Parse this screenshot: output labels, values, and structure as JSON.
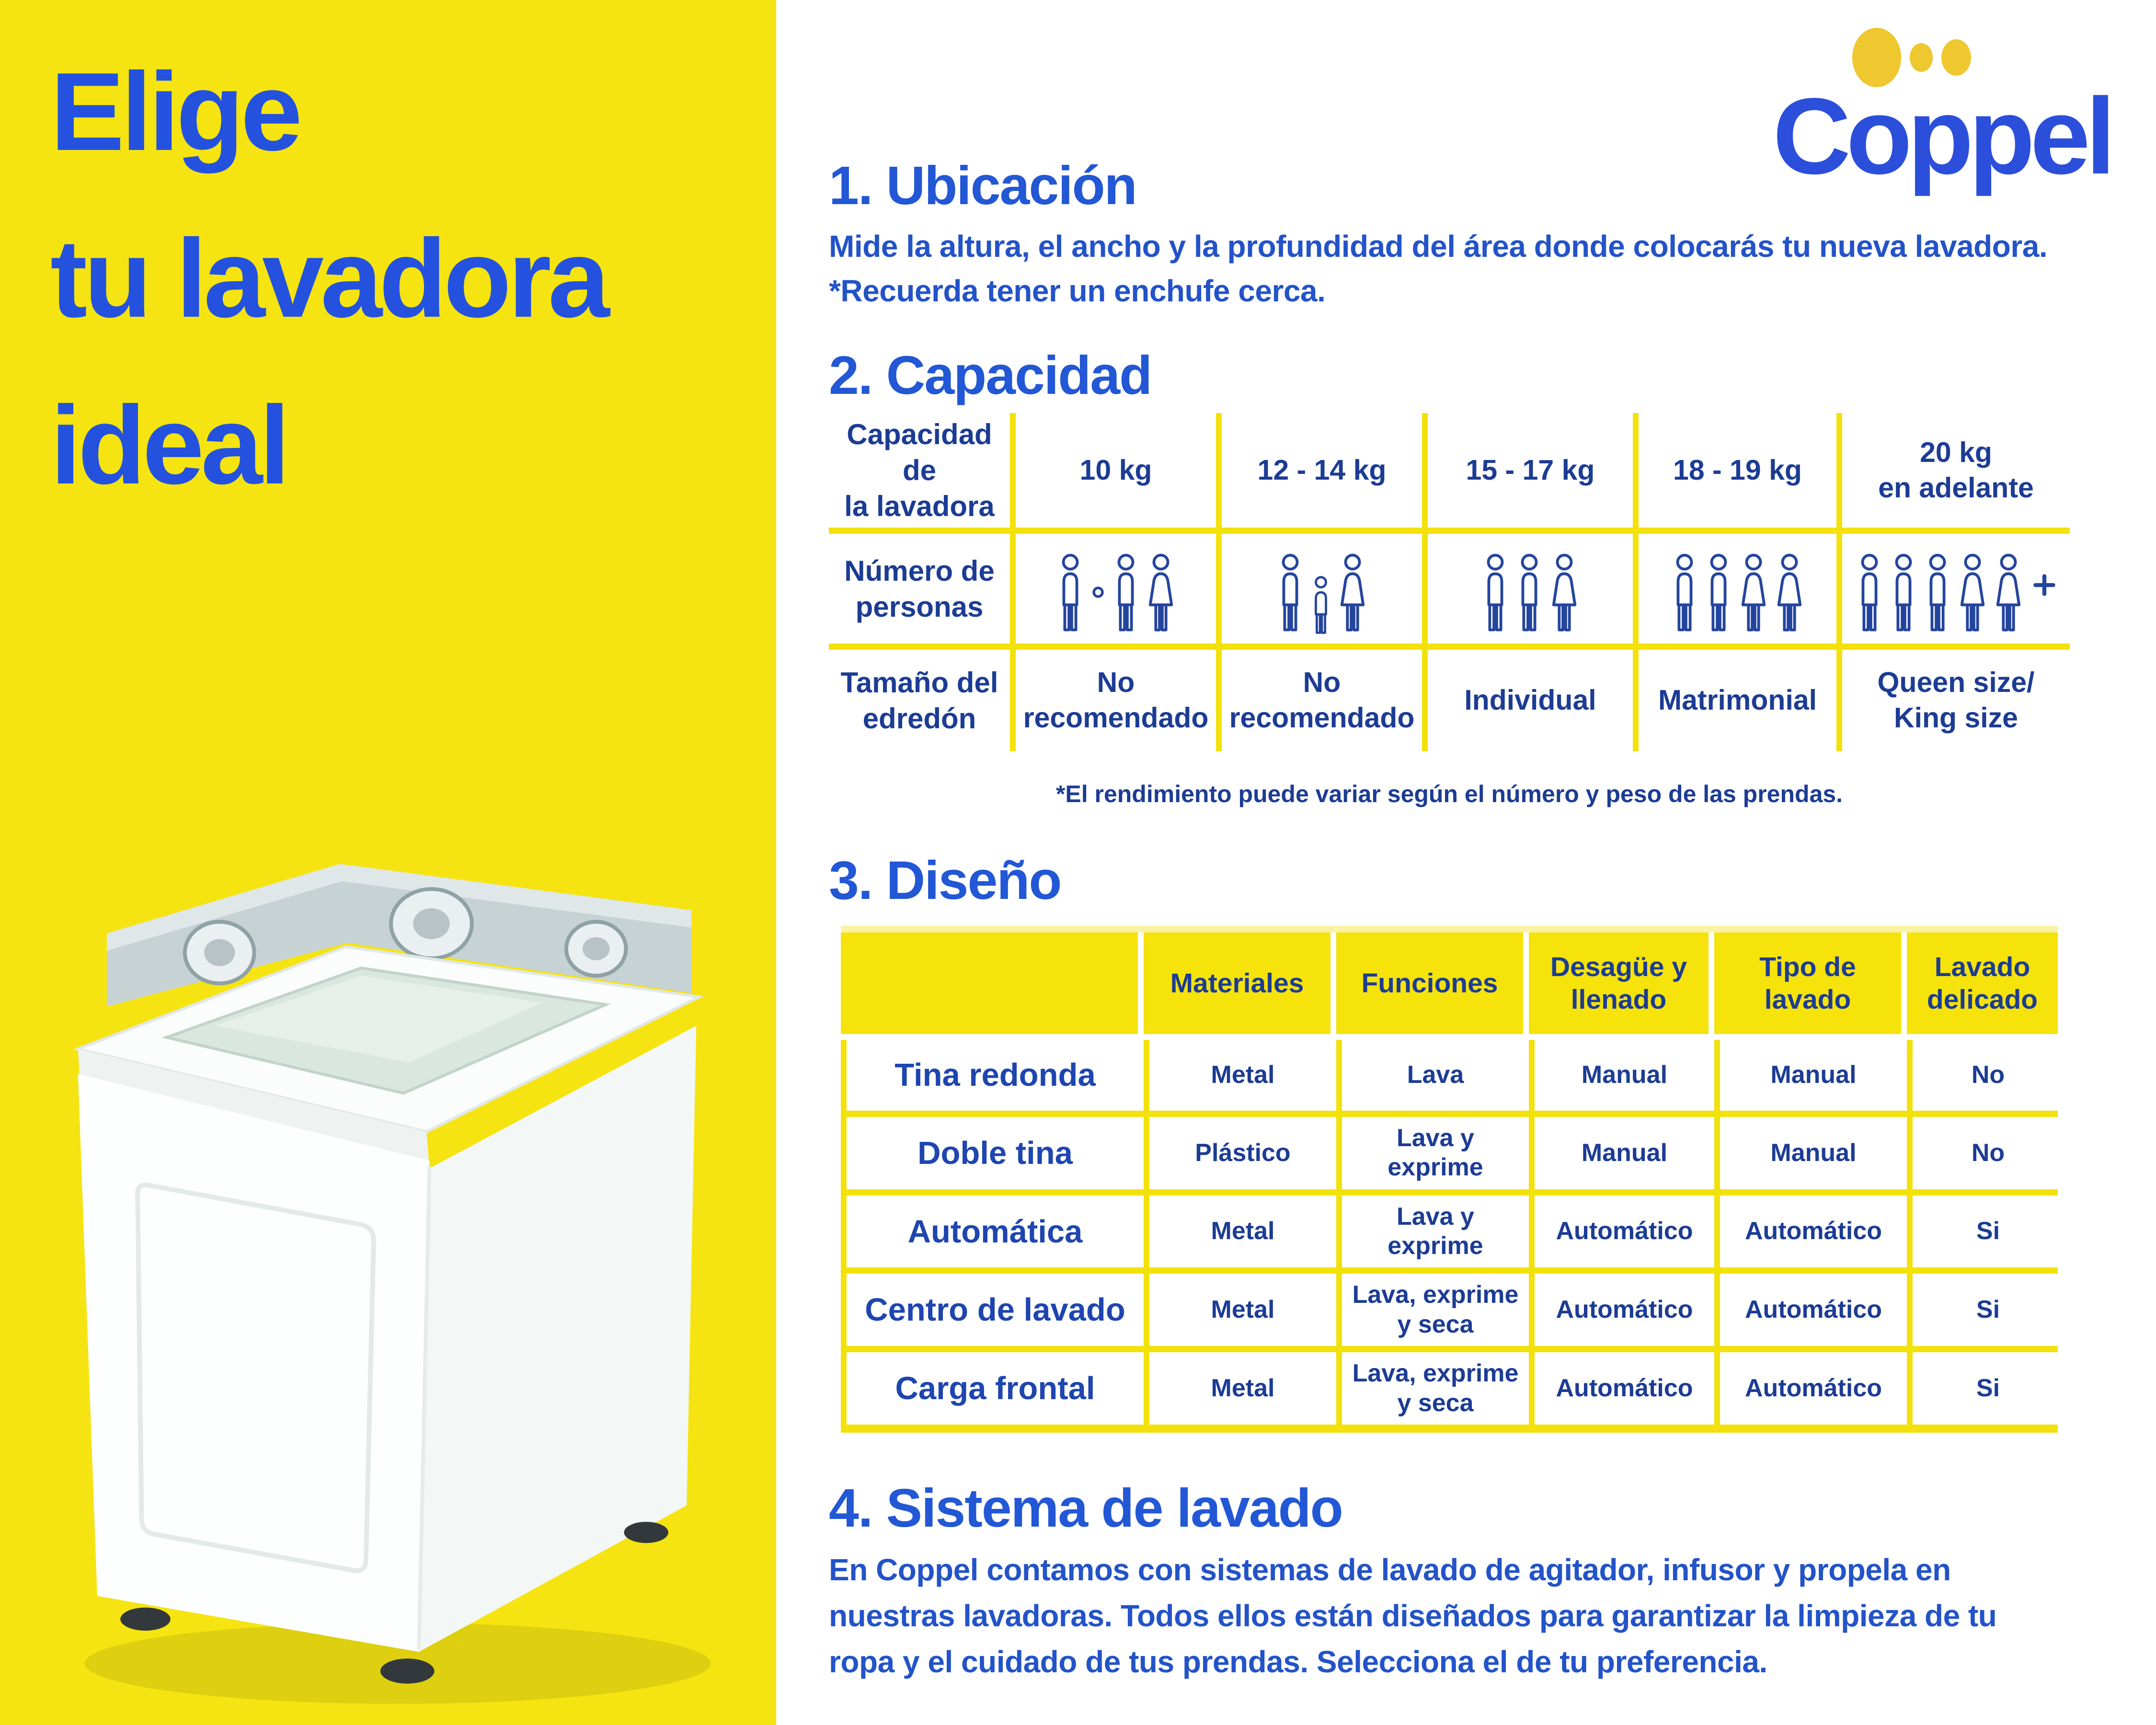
{
  "colors": {
    "panel_yellow": "#F5E411",
    "divider_yellow": "#F2E10A",
    "header_yellow": "#F5E30B",
    "title_blue": "#2452DF",
    "heading_blue": "#2257D5",
    "body_blue": "#2353C9",
    "table_navy": "#1C3C94",
    "logo_blue": "#2B4FDB",
    "dot_gold": "#EFC72F"
  },
  "left_panel": {
    "title": "Elige\ntu lavadora\nideal",
    "image_label": "lavadora blanca de carga superior"
  },
  "logo": {
    "text": "Coppel",
    "dots": [
      "dot-large",
      "dot-small",
      "dot-medium"
    ]
  },
  "sections": {
    "ubicacion": {
      "title": "1. Ubicación",
      "body": "Mide la altura, el ancho y la profundidad del área donde colocarás tu nueva lavadora.\n*Recuerda tener un enchufe cerca."
    },
    "capacidad": {
      "title": "2. Capacidad",
      "row_headers": {
        "capacity": "Capacidad de\nla lavadora",
        "persons": "Número de\npersonas",
        "comforter": "Tamaño del\nedredón"
      },
      "columns": [
        {
          "capacity": "10 kg",
          "persons_label": "1 ó 2 personas",
          "persons_icons": [
            "person-man",
            "or-dot",
            "person-man",
            "person-woman"
          ],
          "comforter": "No\nrecomendado"
        },
        {
          "capacity": "12 - 14 kg",
          "persons_label": "3 personas (2 adultos y 1 niño)",
          "persons_icons": [
            "person-man",
            "person-child",
            "person-woman"
          ],
          "comforter": "No\nrecomendado"
        },
        {
          "capacity": "15 - 17 kg",
          "persons_label": "3 personas",
          "persons_icons": [
            "person-man",
            "person-man",
            "person-woman"
          ],
          "comforter": "Individual"
        },
        {
          "capacity": "18 - 19 kg",
          "persons_label": "4 personas",
          "persons_icons": [
            "person-man",
            "person-man",
            "person-woman",
            "person-woman"
          ],
          "comforter": "Matrimonial"
        },
        {
          "capacity": "20 kg\nen adelante",
          "persons_label": "5 o más personas",
          "persons_icons": [
            "person-man",
            "person-man",
            "person-man",
            "person-woman",
            "person-woman",
            "plus"
          ],
          "comforter": "Queen size/\nKing size"
        }
      ],
      "footnote": "*El rendimiento puede variar según el número y peso de las prendas."
    },
    "diseno": {
      "title": "3. Diseño",
      "column_headers": [
        "Materiales",
        "Funciones",
        "Desagüe y\nllenado",
        "Tipo de\nlavado",
        "Lavado\ndelicado"
      ],
      "rows": [
        {
          "label": "Tina redonda",
          "cells": [
            "Metal",
            "Lava",
            "Manual",
            "Manual",
            "No"
          ]
        },
        {
          "label": "Doble tina",
          "cells": [
            "Plástico",
            "Lava y\nexprime",
            "Manual",
            "Manual",
            "No"
          ]
        },
        {
          "label": "Automática",
          "cells": [
            "Metal",
            "Lava y\nexprime",
            "Automático",
            "Automático",
            "Si"
          ]
        },
        {
          "label": "Centro de lavado",
          "cells": [
            "Metal",
            "Lava, exprime\ny seca",
            "Automático",
            "Automático",
            "Si"
          ]
        },
        {
          "label": "Carga frontal",
          "cells": [
            "Metal",
            "Lava, exprime\ny seca",
            "Automático",
            "Automático",
            "Si"
          ]
        }
      ]
    },
    "sistema": {
      "title": "4. Sistema de lavado",
      "body": "En Coppel contamos con sistemas de lavado de agitador, infusor y propela en\nnuestras lavadoras. Todos ellos están diseñados para garantizar la limpieza de tu\nropa y el cuidado de tus prendas. Selecciona el de tu preferencia."
    }
  }
}
